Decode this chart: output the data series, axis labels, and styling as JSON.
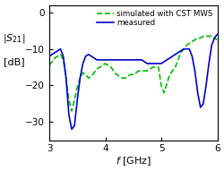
{
  "xlabel": "$f$ [GHz]",
  "xlim": [
    3.0,
    6.0
  ],
  "ylim": [
    -35,
    2
  ],
  "yticks": [
    0,
    -10,
    -20,
    -30
  ],
  "xticks": [
    3,
    4,
    5,
    6
  ],
  "simulated_color": "#00bb00",
  "measured_color": "#0000cc",
  "legend_simulated": "simulated with CST MWS",
  "legend_measured": "measured",
  "sim_x": [
    3.0,
    3.05,
    3.1,
    3.15,
    3.2,
    3.25,
    3.3,
    3.35,
    3.4,
    3.45,
    3.5,
    3.55,
    3.6,
    3.65,
    3.7,
    3.75,
    3.8,
    3.85,
    3.9,
    3.95,
    4.0,
    4.05,
    4.1,
    4.15,
    4.2,
    4.25,
    4.3,
    4.35,
    4.4,
    4.45,
    4.5,
    4.55,
    4.6,
    4.65,
    4.7,
    4.75,
    4.8,
    4.85,
    4.9,
    4.95,
    5.0,
    5.05,
    5.1,
    5.15,
    5.2,
    5.25,
    5.3,
    5.35,
    5.4,
    5.45,
    5.5,
    5.55,
    5.6,
    5.65,
    5.7,
    5.75,
    5.8,
    5.85,
    5.9,
    5.95,
    6.0
  ],
  "sim_y": [
    -14.5,
    -13.5,
    -12.5,
    -12.0,
    -11.5,
    -13.0,
    -18.0,
    -24.0,
    -27.0,
    -24.0,
    -20.5,
    -18.0,
    -16.5,
    -17.0,
    -18.0,
    -17.5,
    -16.5,
    -15.5,
    -15.0,
    -14.5,
    -14.0,
    -14.5,
    -15.0,
    -16.0,
    -17.0,
    -17.5,
    -18.0,
    -18.0,
    -17.5,
    -17.0,
    -17.0,
    -16.5,
    -16.0,
    -16.0,
    -16.0,
    -16.0,
    -15.5,
    -15.0,
    -15.0,
    -15.0,
    -20.0,
    -22.0,
    -19.5,
    -17.0,
    -16.0,
    -15.0,
    -13.0,
    -11.0,
    -10.0,
    -9.0,
    -8.5,
    -8.0,
    -7.5,
    -7.0,
    -7.0,
    -6.5,
    -6.5,
    -6.5,
    -6.5,
    -7.0,
    -7.5
  ],
  "meas_x": [
    3.0,
    3.05,
    3.1,
    3.15,
    3.2,
    3.25,
    3.3,
    3.35,
    3.4,
    3.45,
    3.5,
    3.55,
    3.6,
    3.65,
    3.7,
    3.75,
    3.8,
    3.85,
    3.9,
    3.95,
    4.0,
    4.05,
    4.1,
    4.15,
    4.2,
    4.25,
    4.3,
    4.35,
    4.4,
    4.45,
    4.5,
    4.55,
    4.6,
    4.65,
    4.7,
    4.75,
    4.8,
    4.85,
    4.9,
    4.95,
    5.0,
    5.05,
    5.1,
    5.15,
    5.2,
    5.25,
    5.3,
    5.35,
    5.4,
    5.45,
    5.5,
    5.55,
    5.6,
    5.65,
    5.7,
    5.75,
    5.8,
    5.85,
    5.9,
    5.95,
    6.0
  ],
  "meas_y": [
    -12.0,
    -11.5,
    -11.0,
    -10.5,
    -10.0,
    -12.0,
    -18.0,
    -28.0,
    -32.0,
    -31.0,
    -24.0,
    -18.0,
    -14.0,
    -12.0,
    -11.5,
    -12.0,
    -12.5,
    -13.0,
    -13.0,
    -13.0,
    -13.0,
    -13.0,
    -13.0,
    -13.0,
    -13.0,
    -13.0,
    -13.0,
    -13.0,
    -13.0,
    -13.0,
    -13.0,
    -13.0,
    -13.0,
    -13.0,
    -13.5,
    -14.0,
    -14.0,
    -14.0,
    -14.0,
    -14.0,
    -14.0,
    -13.5,
    -13.0,
    -12.5,
    -12.0,
    -11.5,
    -11.0,
    -10.5,
    -10.0,
    -10.0,
    -10.0,
    -12.0,
    -16.0,
    -22.0,
    -26.0,
    -25.0,
    -20.0,
    -14.0,
    -9.0,
    -7.0,
    -6.0
  ]
}
